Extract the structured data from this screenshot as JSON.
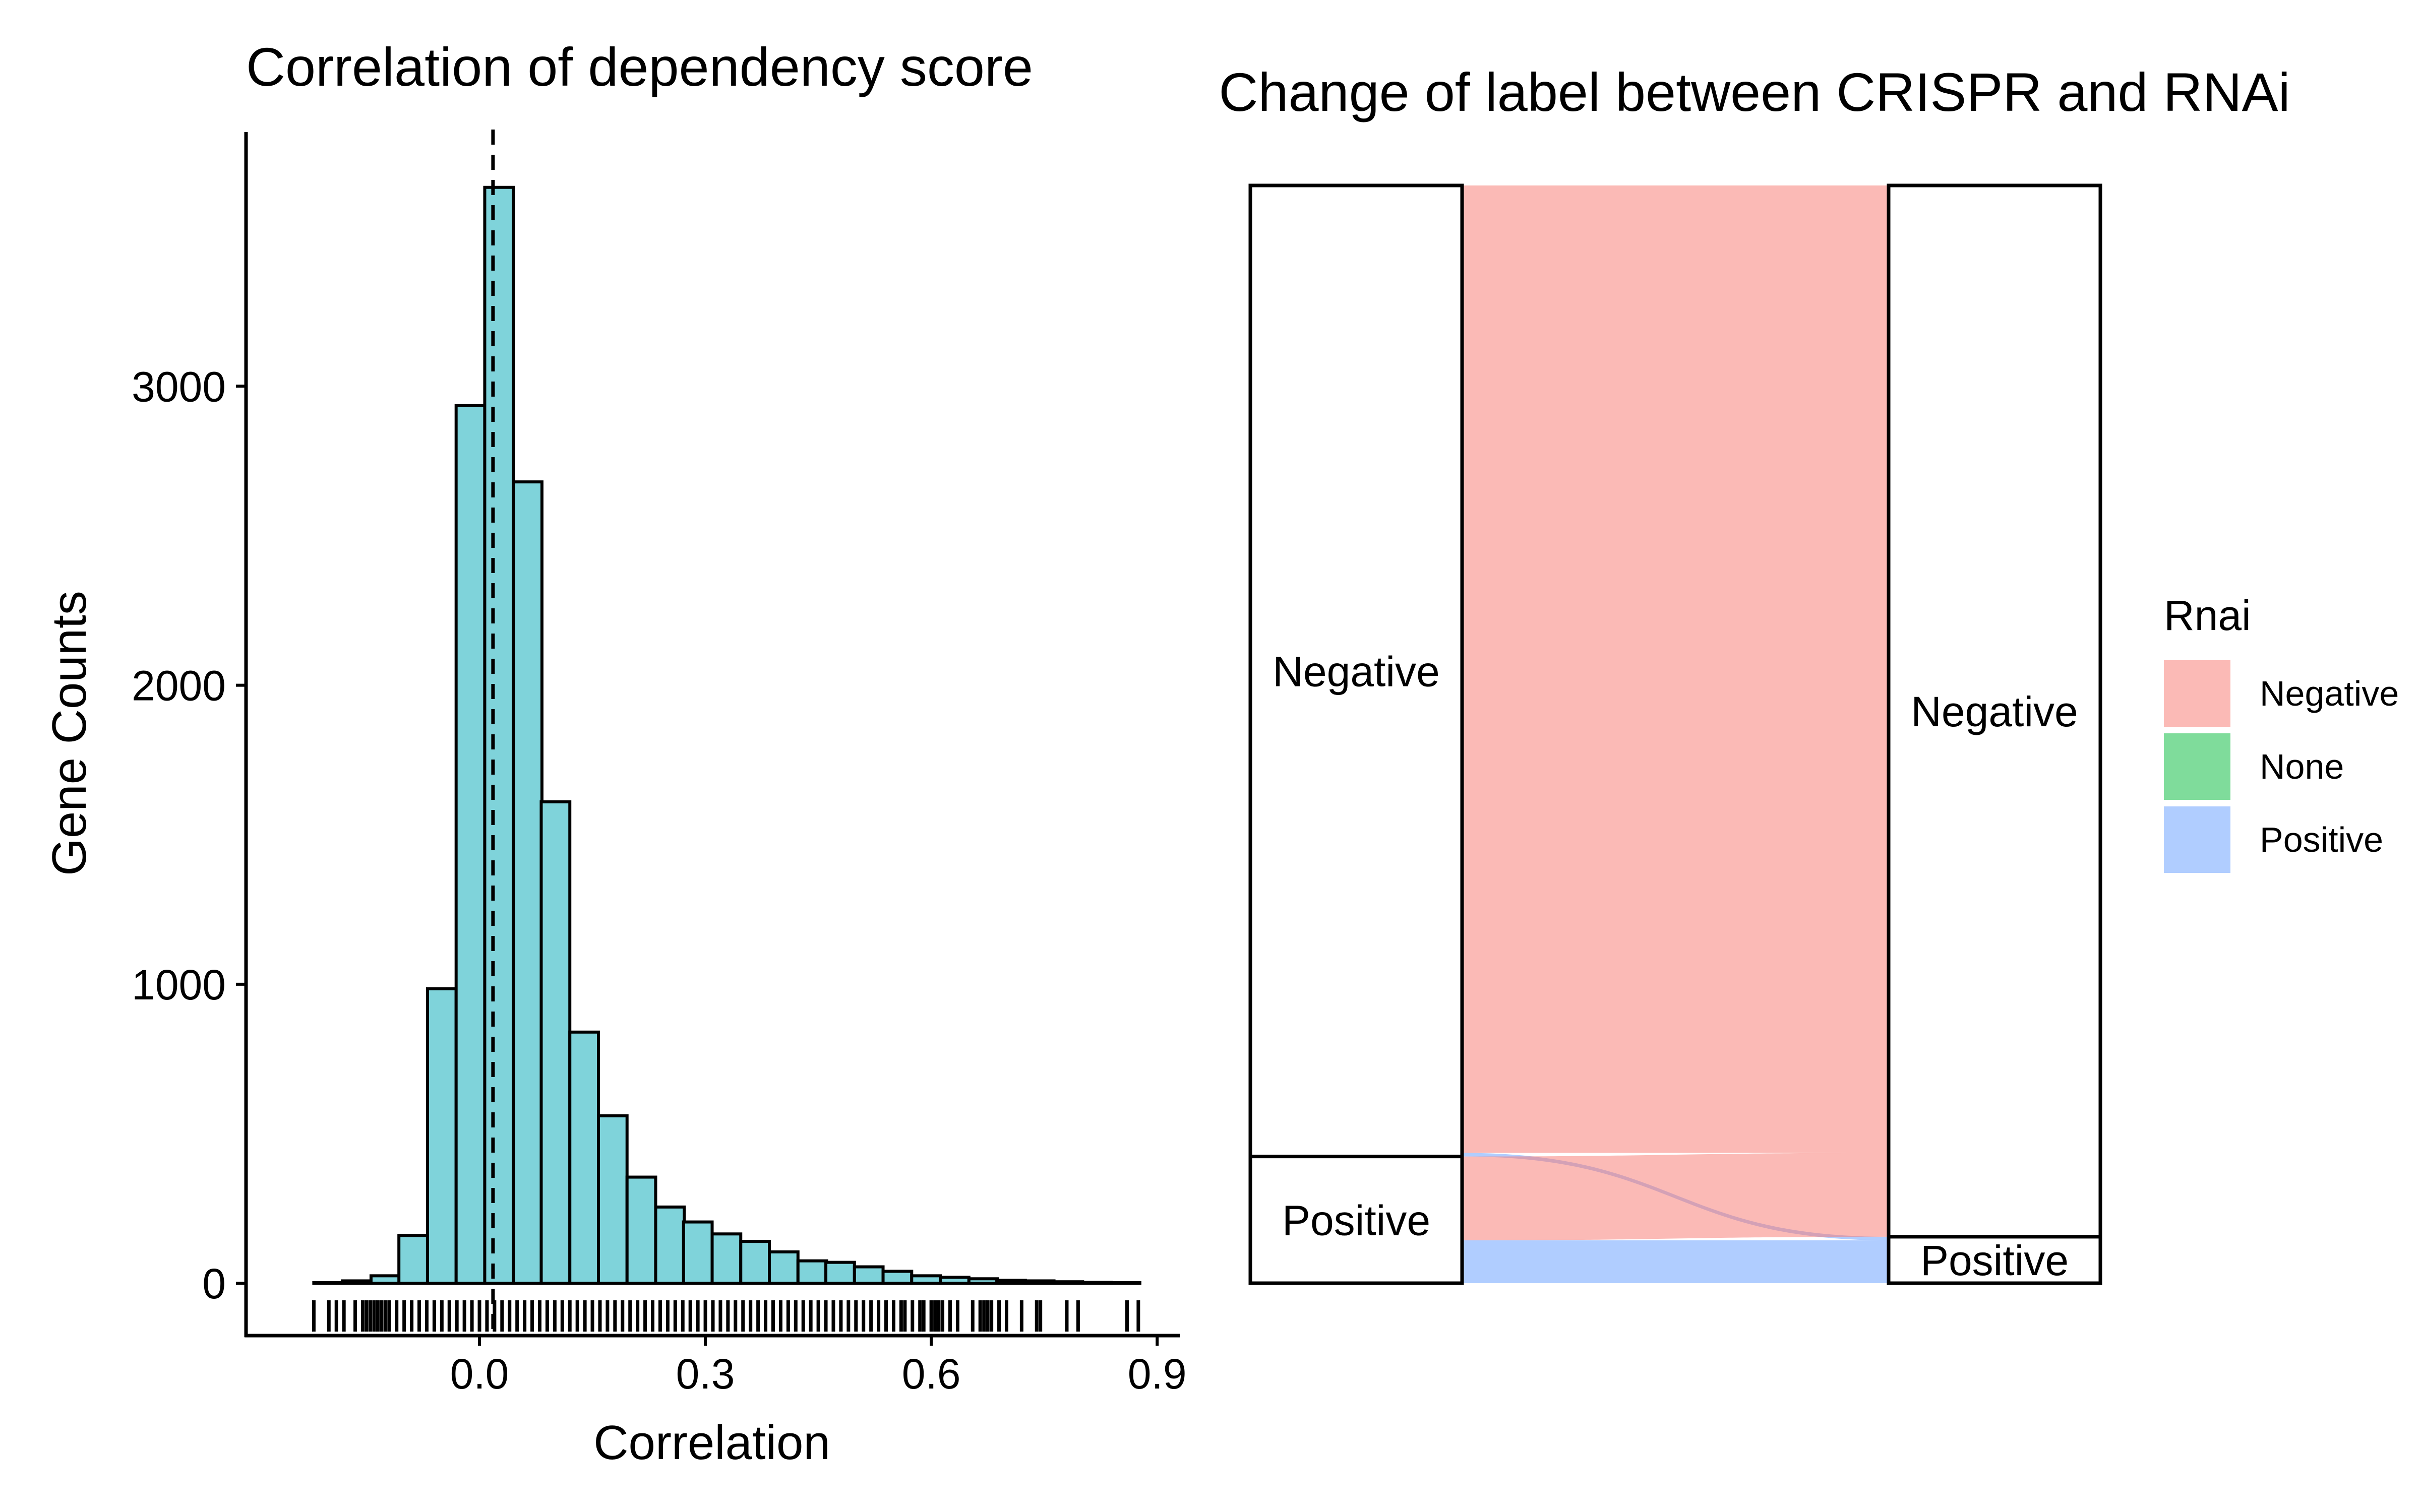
{
  "chart_data": [
    {
      "type": "bar",
      "title": "Correlation of dependency score",
      "xlabel": "Correlation",
      "ylabel": "Gene Counts",
      "xlim": [
        -0.31,
        0.93
      ],
      "ylim": [
        -175,
        3850
      ],
      "x_ticks": [
        {
          "value": 0.0,
          "label": "0.0"
        },
        {
          "value": 0.3,
          "label": "0.3"
        },
        {
          "value": 0.6,
          "label": "0.6"
        },
        {
          "value": 0.9,
          "label": "0.9"
        }
      ],
      "y_ticks": [
        {
          "value": 0,
          "label": "0"
        },
        {
          "value": 1000,
          "label": "1000"
        },
        {
          "value": 2000,
          "label": "2000"
        },
        {
          "value": 3000,
          "label": "3000"
        }
      ],
      "bin_centers": [
        -0.201,
        -0.163,
        -0.125,
        -0.088,
        -0.05,
        -0.012,
        0.026,
        0.064,
        0.101,
        0.139,
        0.177,
        0.215,
        0.253,
        0.29,
        0.328,
        0.366,
        0.404,
        0.442,
        0.479,
        0.517,
        0.555,
        0.593,
        0.631,
        0.669,
        0.706,
        0.744,
        0.782,
        0.82,
        0.858
      ],
      "counts": [
        2,
        8,
        25,
        160,
        985,
        2935,
        3665,
        2680,
        1610,
        840,
        560,
        355,
        255,
        205,
        165,
        140,
        105,
        75,
        70,
        55,
        40,
        25,
        20,
        15,
        10,
        8,
        5,
        3,
        2
      ],
      "bar_color": "#7fd3da",
      "reference_line": {
        "x": 0.018,
        "style": "dashed"
      },
      "rug_values": [
        -0.22,
        -0.2,
        -0.19,
        -0.18,
        -0.165,
        -0.155,
        -0.15,
        -0.145,
        -0.14,
        -0.135,
        -0.13,
        -0.125,
        -0.12,
        -0.11,
        -0.1,
        -0.09,
        -0.08,
        -0.07,
        -0.06,
        -0.05,
        -0.04,
        -0.03,
        -0.02,
        -0.01,
        0.0,
        0.01,
        0.02,
        0.03,
        0.04,
        0.05,
        0.06,
        0.07,
        0.08,
        0.09,
        0.1,
        0.11,
        0.12,
        0.13,
        0.14,
        0.15,
        0.16,
        0.17,
        0.18,
        0.19,
        0.2,
        0.21,
        0.22,
        0.23,
        0.24,
        0.25,
        0.26,
        0.27,
        0.28,
        0.29,
        0.3,
        0.31,
        0.32,
        0.33,
        0.34,
        0.35,
        0.36,
        0.37,
        0.38,
        0.39,
        0.4,
        0.41,
        0.42,
        0.43,
        0.44,
        0.45,
        0.46,
        0.47,
        0.48,
        0.49,
        0.5,
        0.51,
        0.52,
        0.53,
        0.54,
        0.55,
        0.56,
        0.565,
        0.575,
        0.585,
        0.59,
        0.6,
        0.605,
        0.61,
        0.615,
        0.625,
        0.635,
        0.655,
        0.665,
        0.67,
        0.675,
        0.68,
        0.69,
        0.7,
        0.72,
        0.74,
        0.745,
        0.78,
        0.795,
        0.86,
        0.875
      ]
    },
    {
      "type": "alluvial",
      "title": "Change of label between CRISPR and RNAi",
      "total": 3665,
      "axes": [
        {
          "strata": [
            {
              "label": "Negative",
              "value": 3242
            },
            {
              "label": "Positive",
              "value": 423
            }
          ]
        },
        {
          "strata": [
            {
              "label": "Negative",
              "value": 3510
            },
            {
              "label": "Positive",
              "value": 155
            }
          ]
        }
      ],
      "flows": [
        {
          "from": "Negative",
          "to": "Negative",
          "value": 3230,
          "rnai": "Negative"
        },
        {
          "from": "Negative",
          "to": "Positive",
          "value": 12,
          "rnai": "Positive"
        },
        {
          "from": "Positive",
          "to": "Negative",
          "value": 280,
          "rnai": "Negative"
        },
        {
          "from": "Positive",
          "to": "Positive",
          "value": 143,
          "rnai": "Positive"
        }
      ],
      "legend": {
        "title": "Rnai",
        "position": "right",
        "items": [
          {
            "label": "Negative",
            "color": "#f8766d"
          },
          {
            "label": "None",
            "color": "#00ba38"
          },
          {
            "label": "Positive",
            "color": "#619cff"
          }
        ]
      }
    }
  ]
}
